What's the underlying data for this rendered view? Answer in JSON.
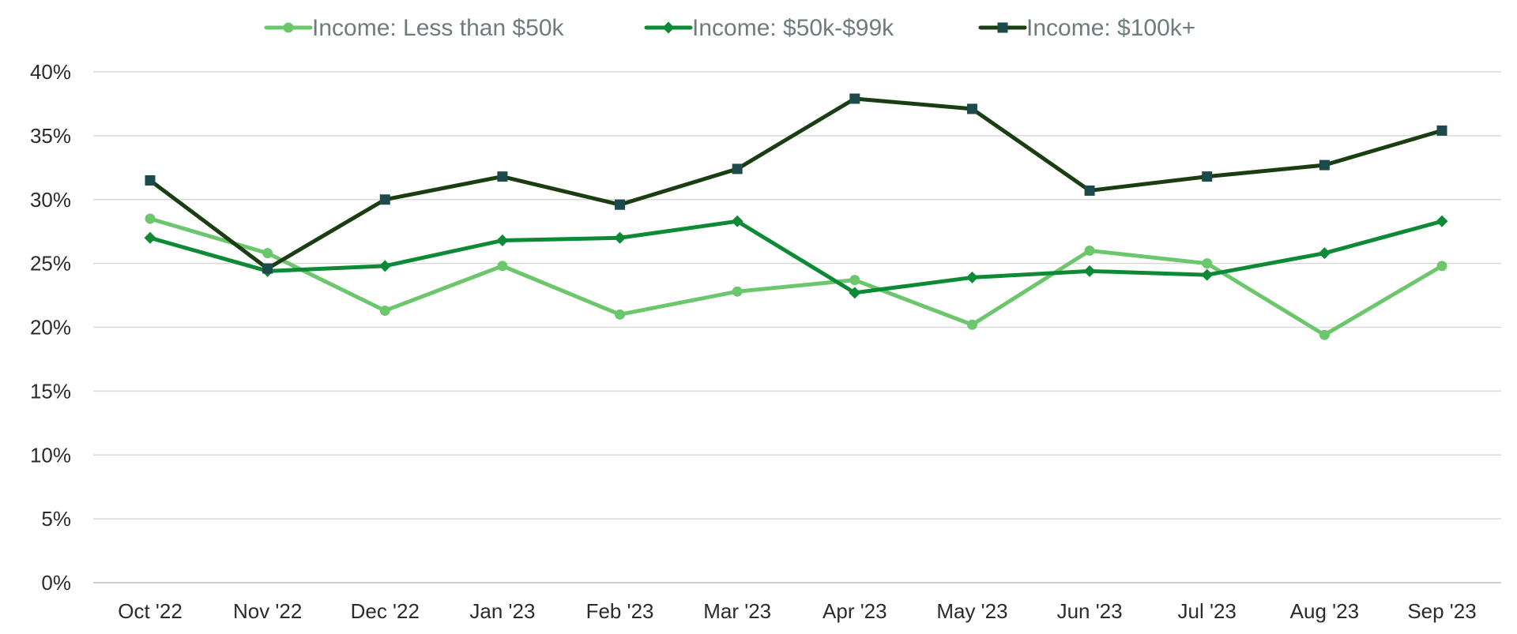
{
  "chart_data": {
    "type": "line",
    "title": "",
    "xlabel": "",
    "ylabel": "",
    "categories": [
      "Oct '22",
      "Nov '22",
      "Dec '22",
      "Jan '23",
      "Feb '23",
      "Mar '23",
      "Apr '23",
      "May '23",
      "Jun '23",
      "Jul '23",
      "Aug '23",
      "Sep '23"
    ],
    "ylim": [
      0,
      40
    ],
    "y_ticks": [
      0,
      5,
      10,
      15,
      20,
      25,
      30,
      35,
      40
    ],
    "y_tick_labels": [
      "0%",
      "5%",
      "10%",
      "15%",
      "20%",
      "25%",
      "30%",
      "35%",
      "40%"
    ],
    "grid": true,
    "legend_position": "top",
    "series": [
      {
        "name": "Income: Less than $50k",
        "color": "#6cc76c",
        "marker": "circle",
        "values": [
          28.5,
          25.8,
          21.3,
          24.8,
          21.0,
          22.8,
          23.7,
          20.2,
          26.0,
          25.0,
          19.4,
          24.8
        ]
      },
      {
        "name": "Income: $50k-$99k",
        "color": "#0d8a35",
        "marker": "diamond",
        "values": [
          27.0,
          24.4,
          24.8,
          26.8,
          27.0,
          28.3,
          22.7,
          23.9,
          24.4,
          24.1,
          25.8,
          28.3
        ]
      },
      {
        "name": "Income: $100k+",
        "color": "#1a3e12",
        "marker_color": "#1d4a4a",
        "marker": "square",
        "values": [
          31.5,
          24.6,
          30.0,
          31.8,
          29.6,
          32.4,
          37.9,
          37.1,
          30.7,
          31.8,
          32.7,
          35.4
        ]
      }
    ]
  }
}
